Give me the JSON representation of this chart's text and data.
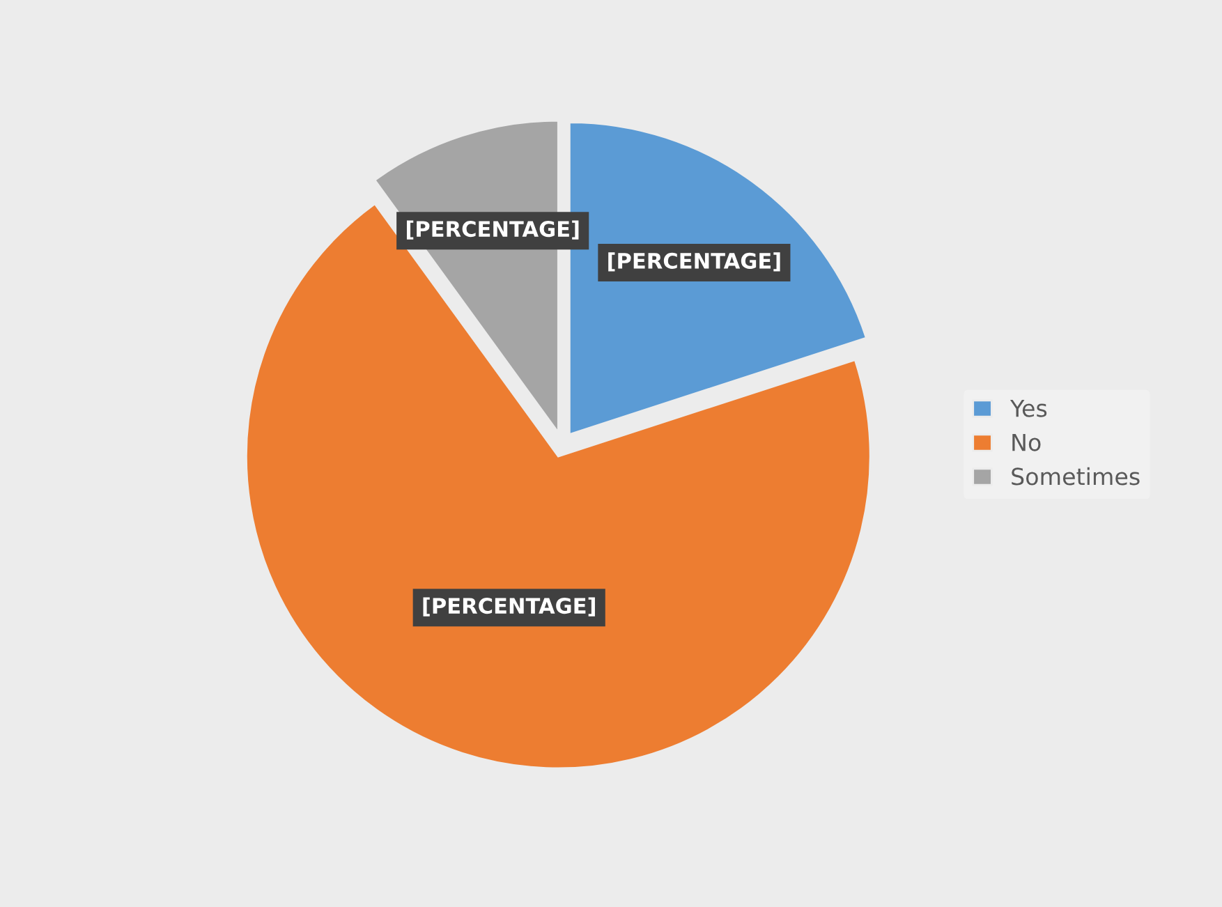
{
  "chart_data": {
    "type": "pie",
    "categories": [
      "Yes",
      "No",
      "Sometimes"
    ],
    "values": [
      20,
      70,
      10
    ],
    "colors": [
      "#5b9bd5",
      "#ed7d31",
      "#a5a5a5"
    ],
    "value_labels": [
      "[PERCENTAGE]",
      "[PERCENTAGE]",
      "[PERCENTAGE]"
    ],
    "legend": "right"
  }
}
